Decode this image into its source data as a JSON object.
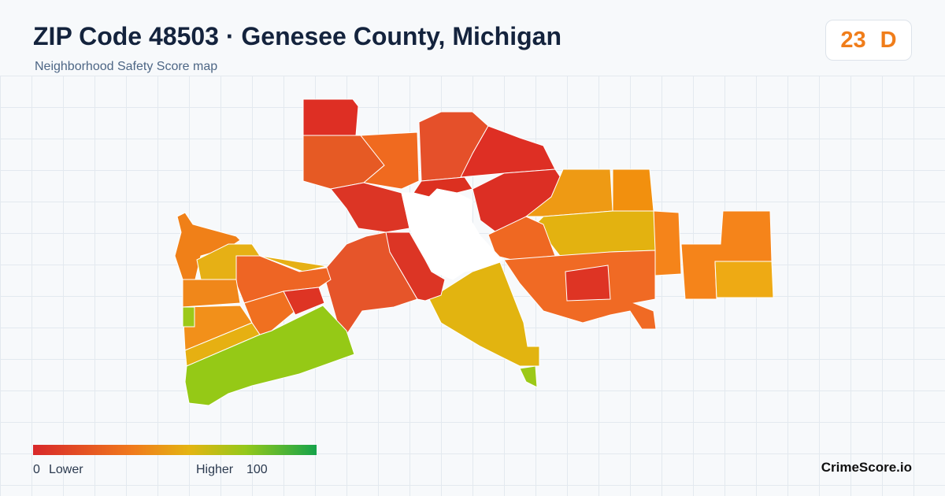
{
  "header": {
    "title": "ZIP Code 48503 · Genesee County, Michigan",
    "subtitle": "Neighborhood Safety Score map",
    "score": 23,
    "grade": "D"
  },
  "legend": {
    "min": 0,
    "min_label": "Lower",
    "max_label": "Higher",
    "max": 100
  },
  "footer": {
    "brand": "CrimeScore.io"
  }
}
